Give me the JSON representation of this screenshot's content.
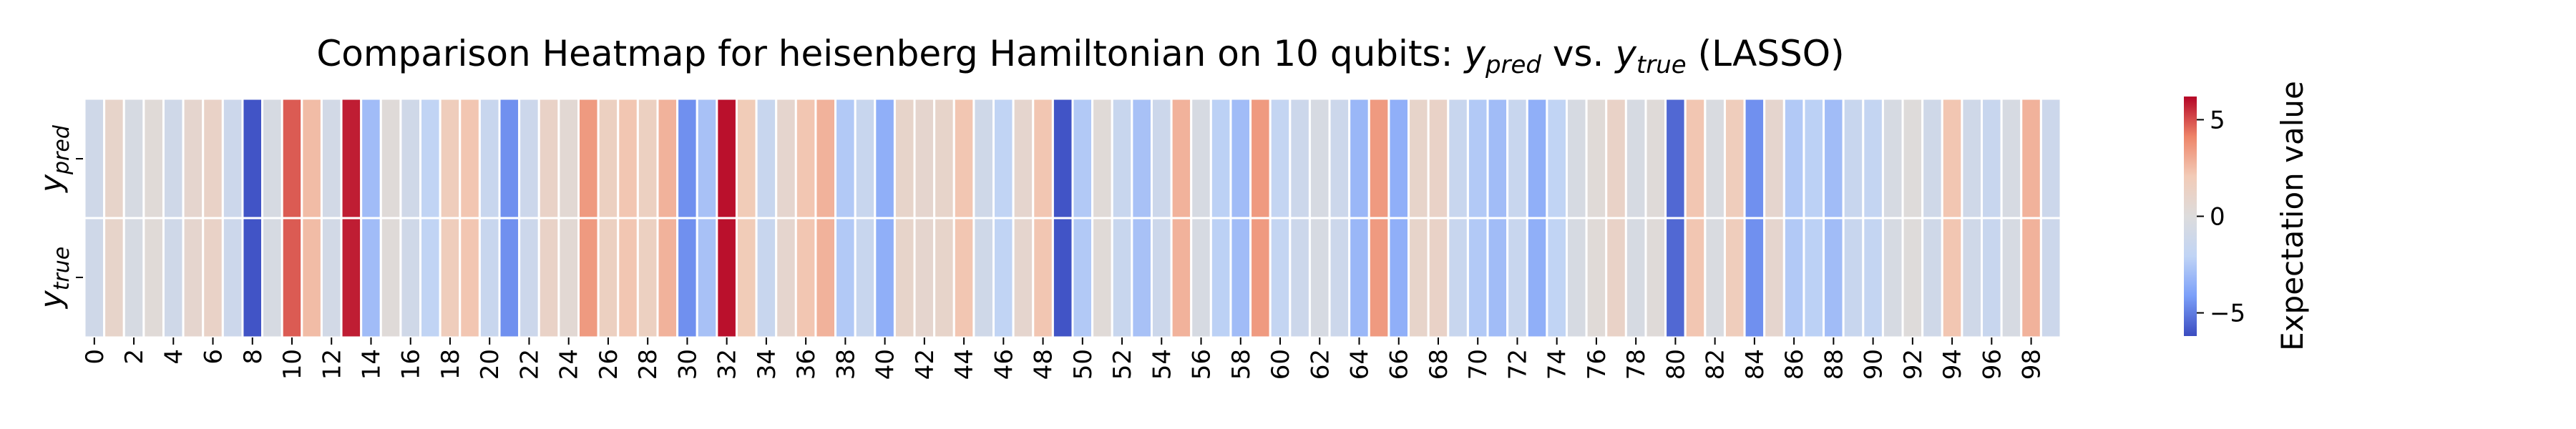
{
  "chart_data": {
    "type": "heatmap",
    "title": "Comparison Heatmap for heisenberg Hamiltonian on 10 qubits: ",
    "title_parts": {
      "ypred_base": "y",
      "ypred_sub": "pred",
      "vs": " vs. ",
      "ytrue_base": "y",
      "ytrue_sub": "true",
      "method": " (LASSO)"
    },
    "rows": [
      {
        "label_base": "y",
        "label_sub": "pred"
      },
      {
        "label_base": "y",
        "label_sub": "true"
      }
    ],
    "x_ticks": [
      0,
      2,
      4,
      6,
      8,
      10,
      12,
      14,
      16,
      18,
      20,
      22,
      24,
      26,
      28,
      30,
      32,
      34,
      36,
      38,
      40,
      42,
      44,
      46,
      48,
      50,
      52,
      54,
      56,
      58,
      60,
      62,
      64,
      66,
      68,
      70,
      72,
      74,
      76,
      78,
      80,
      82,
      84,
      86,
      88,
      90,
      92,
      94,
      96,
      98
    ],
    "values": [
      -1,
      1,
      -0.5,
      0.3,
      -1,
      0.8,
      1.2,
      -1.2,
      -6,
      -0.5,
      4.8,
      2.5,
      -0.8,
      5.8,
      -3,
      0.2,
      -1,
      -2,
      1.8,
      2.2,
      -1.5,
      -4.5,
      -1.2,
      1.2,
      0.5,
      3.5,
      1.5,
      2.2,
      1.5,
      2.8,
      -4.5,
      -2.8,
      6,
      2,
      -1.5,
      0.8,
      2.2,
      2.8,
      -2.5,
      -1.5,
      -3.5,
      1,
      0.8,
      1,
      2.2,
      -1,
      -2,
      0.8,
      2.2,
      -6,
      -2.5,
      0.3,
      -1.5,
      -2.8,
      -1.2,
      2.8,
      -0.5,
      -2.2,
      -3,
      3.5,
      -1.8,
      -1.2,
      -0.5,
      -1.2,
      -3.2,
      3.5,
      -3.5,
      1,
      1.2,
      -1.5,
      -2.5,
      -3,
      -1.5,
      -3.5,
      -2,
      -0.5,
      0.3,
      1.2,
      -0.5,
      0.2,
      -5.5,
      2.2,
      -0.3,
      1.8,
      -4.5,
      0.8,
      -2.5,
      -2.2,
      -3,
      -1.5,
      -1.8,
      -0.5,
      0.1,
      -1,
      2.2,
      -1,
      -1.5,
      -0.5,
      2.8,
      -1.2
    ],
    "vmin": -6.2,
    "vmax": 6.2,
    "colormap": "coolwarm",
    "colormap_stops": [
      "#3b4cc0",
      "#7b9ff9",
      "#c0d4f5",
      "#dddcdc",
      "#f2cbb7",
      "#ee8468",
      "#b40426"
    ],
    "colorbar": {
      "label": "Expectation value",
      "ticks": [
        5,
        0,
        -5
      ],
      "tick_labels": [
        "5",
        "0",
        "−5"
      ]
    },
    "grid": true,
    "legend": "colorbar-right"
  }
}
